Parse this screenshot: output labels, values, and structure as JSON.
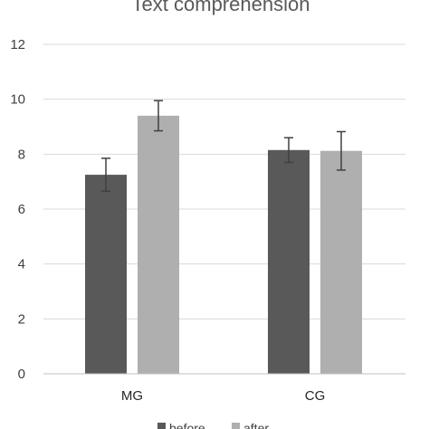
{
  "chart_data": {
    "type": "bar",
    "title": "Text comprehension",
    "categories": [
      "MG",
      "CG"
    ],
    "series": [
      {
        "name": "before",
        "color": "#595959",
        "values": [
          7.25,
          8.15
        ],
        "errors": [
          0.6,
          0.45
        ]
      },
      {
        "name": "after",
        "color": "#AFAFAF",
        "values": [
          9.4,
          8.12
        ],
        "errors": [
          0.55,
          0.7
        ]
      }
    ],
    "yticks": [
      "0",
      "2",
      "4",
      "6",
      "8",
      "10",
      "12"
    ],
    "ylim": [
      0,
      12
    ],
    "grid": true,
    "legend": "bottom"
  }
}
